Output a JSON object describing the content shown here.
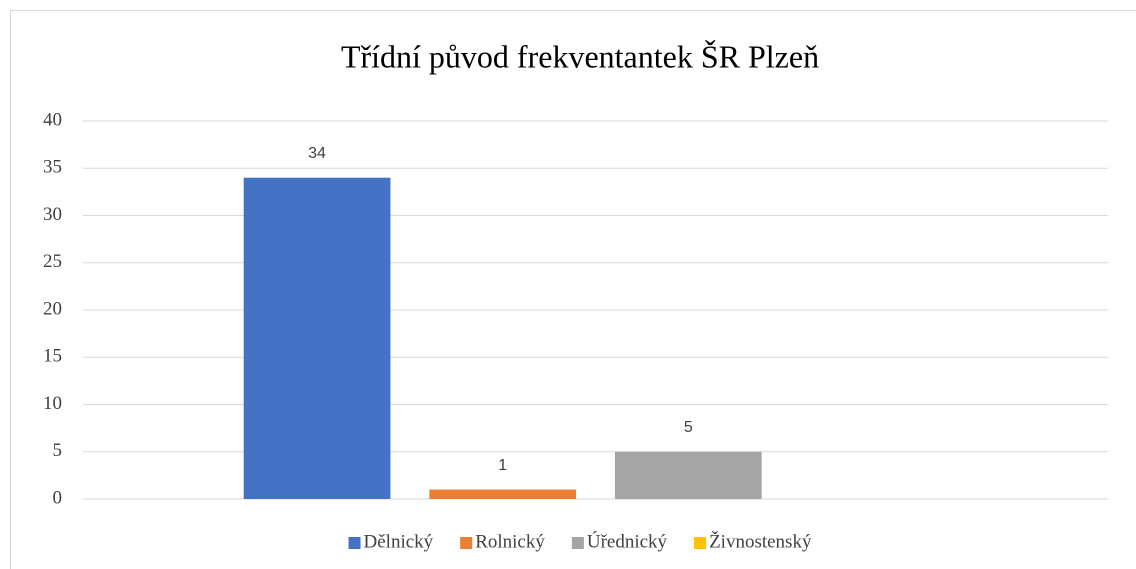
{
  "chart_data": {
    "type": "bar",
    "title": "Třídní původ frekventantek ŠR Plzeň",
    "categories": [
      null
    ],
    "series": [
      {
        "name": "Dělnický",
        "color": "#4472c4",
        "values": [
          34
        ]
      },
      {
        "name": "Rolnický",
        "color": "#ed7d31",
        "values": [
          1
        ]
      },
      {
        "name": "Úřednický",
        "color": "#a5a5a5",
        "values": [
          5
        ]
      },
      {
        "name": "Živnostenský",
        "color": "#ffc000",
        "values": [
          null
        ]
      }
    ],
    "ylim": [
      0,
      40
    ],
    "yticks": [
      0,
      5,
      10,
      15,
      20,
      25,
      30,
      35,
      40
    ],
    "grid": true,
    "legend": "bottom"
  }
}
